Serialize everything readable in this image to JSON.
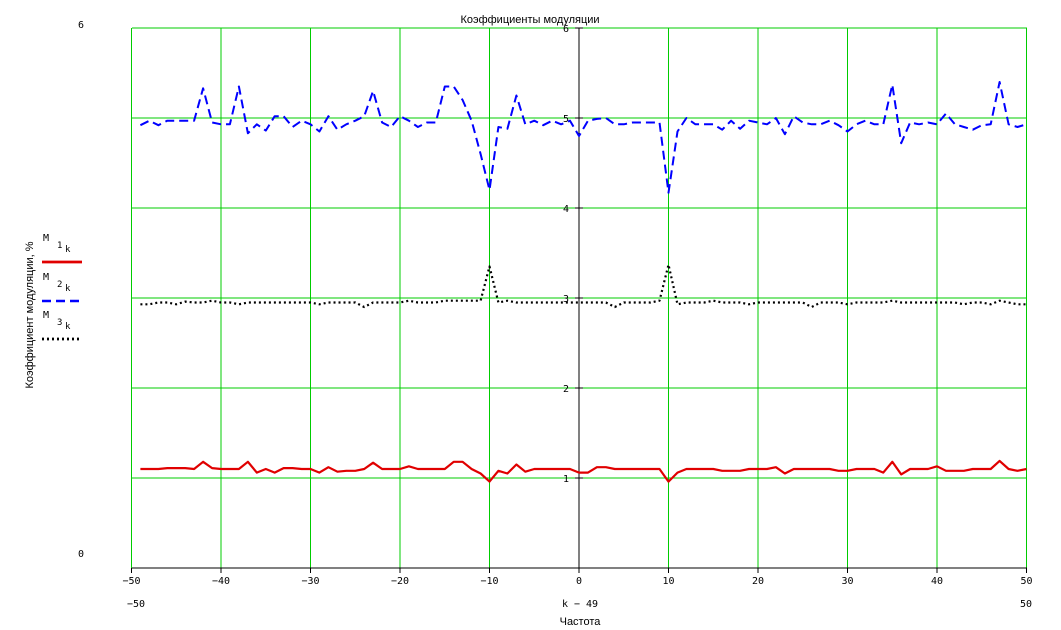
{
  "chart_data": {
    "type": "line",
    "title": "Коэффициенты модуляции",
    "xlabel_expr": "k − 49",
    "xlabel": "Частота",
    "ylabel": "Коэффициент модуляции, %",
    "xlim": [
      -50,
      50
    ],
    "ylim": [
      0,
      6
    ],
    "xlim_labels": [
      "−50",
      "50"
    ],
    "ylim_labels": [
      "0",
      "6"
    ],
    "grid": true,
    "grid_color": "#00cc00",
    "x_ticks": [
      "−50",
      "−40",
      "−30",
      "−20",
      "−10",
      "0",
      "10",
      "20",
      "30",
      "40",
      "50"
    ],
    "y_ticks": [
      "1",
      "2",
      "3",
      "4",
      "5",
      "6"
    ],
    "x": [
      -49,
      -48,
      -47,
      -46,
      -45,
      -44,
      -43,
      -42,
      -41,
      -40,
      -39,
      -38,
      -37,
      -36,
      -35,
      -34,
      -33,
      -32,
      -31,
      -30,
      -29,
      -28,
      -27,
      -26,
      -25,
      -24,
      -23,
      -22,
      -21,
      -20,
      -19,
      -18,
      -17,
      -16,
      -15,
      -14,
      -13,
      -12,
      -11,
      -10,
      -9,
      -8,
      -7,
      -6,
      -5,
      -4,
      -3,
      -2,
      -1,
      0,
      1,
      2,
      3,
      4,
      5,
      6,
      7,
      8,
      9,
      10,
      11,
      12,
      13,
      14,
      15,
      16,
      17,
      18,
      19,
      20,
      21,
      22,
      23,
      24,
      25,
      26,
      27,
      28,
      29,
      30,
      31,
      32,
      33,
      34,
      35,
      36,
      37,
      38,
      39,
      40,
      41,
      42,
      43,
      44,
      45,
      46,
      47,
      48,
      49,
      50
    ],
    "series": [
      {
        "name": "M",
        "subscript": "1",
        "index": "k",
        "color": "#e00000",
        "style": "solid",
        "values": [
          1.1,
          1.1,
          1.1,
          1.11,
          1.11,
          1.11,
          1.1,
          1.18,
          1.11,
          1.1,
          1.1,
          1.1,
          1.18,
          1.06,
          1.1,
          1.06,
          1.11,
          1.11,
          1.1,
          1.1,
          1.06,
          1.12,
          1.07,
          1.08,
          1.08,
          1.1,
          1.17,
          1.1,
          1.1,
          1.1,
          1.13,
          1.1,
          1.1,
          1.1,
          1.1,
          1.18,
          1.18,
          1.1,
          1.05,
          0.96,
          1.08,
          1.05,
          1.15,
          1.07,
          1.1,
          1.1,
          1.1,
          1.1,
          1.1,
          1.06,
          1.06,
          1.12,
          1.12,
          1.1,
          1.1,
          1.1,
          1.1,
          1.1,
          1.1,
          0.96,
          1.06,
          1.1,
          1.1,
          1.1,
          1.1,
          1.08,
          1.08,
          1.08,
          1.1,
          1.1,
          1.1,
          1.12,
          1.05,
          1.1,
          1.1,
          1.1,
          1.1,
          1.1,
          1.08,
          1.08,
          1.1,
          1.1,
          1.1,
          1.06,
          1.18,
          1.04,
          1.1,
          1.1,
          1.1,
          1.13,
          1.08,
          1.08,
          1.08,
          1.1,
          1.1,
          1.1,
          1.19,
          1.1,
          1.08,
          1.1
        ]
      },
      {
        "name": "M",
        "subscript": "2",
        "index": "k",
        "color": "#0000ff",
        "style": "dashed",
        "values": [
          4.92,
          4.97,
          4.92,
          4.97,
          4.97,
          4.97,
          4.97,
          5.33,
          4.95,
          4.93,
          4.93,
          5.35,
          4.83,
          4.93,
          4.86,
          5.02,
          5.02,
          4.9,
          4.97,
          4.93,
          4.85,
          5.02,
          4.87,
          4.93,
          4.97,
          5.02,
          5.3,
          4.95,
          4.9,
          5.02,
          4.97,
          4.9,
          4.95,
          4.95,
          5.35,
          5.35,
          5.2,
          4.97,
          4.6,
          4.2,
          4.9,
          4.88,
          5.25,
          4.93,
          4.97,
          4.92,
          4.97,
          4.93,
          4.97,
          4.8,
          4.97,
          4.99,
          5.0,
          4.93,
          4.93,
          4.95,
          4.95,
          4.95,
          4.95,
          4.17,
          4.85,
          5.0,
          4.93,
          4.93,
          4.93,
          4.87,
          4.97,
          4.88,
          4.97,
          4.95,
          4.93,
          5.0,
          4.82,
          5.02,
          4.95,
          4.93,
          4.93,
          4.97,
          4.92,
          4.85,
          4.93,
          4.97,
          4.93,
          4.93,
          5.37,
          4.72,
          4.95,
          4.93,
          4.95,
          4.93,
          5.05,
          4.93,
          4.9,
          4.87,
          4.92,
          4.93,
          5.4,
          4.93,
          4.9,
          4.93
        ]
      },
      {
        "name": "M",
        "subscript": "3",
        "index": "k",
        "color": "#000000",
        "style": "dotted",
        "values": [
          2.93,
          2.93,
          2.95,
          2.95,
          2.93,
          2.96,
          2.95,
          2.95,
          2.97,
          2.95,
          2.95,
          2.93,
          2.95,
          2.95,
          2.95,
          2.95,
          2.95,
          2.95,
          2.95,
          2.95,
          2.93,
          2.95,
          2.95,
          2.95,
          2.95,
          2.9,
          2.95,
          2.95,
          2.95,
          2.95,
          2.97,
          2.95,
          2.95,
          2.95,
          2.97,
          2.97,
          2.97,
          2.97,
          2.97,
          3.35,
          2.95,
          2.97,
          2.95,
          2.95,
          2.95,
          2.95,
          2.95,
          2.95,
          2.95,
          2.95,
          2.95,
          2.95,
          2.95,
          2.9,
          2.95,
          2.95,
          2.95,
          2.95,
          2.97,
          3.37,
          2.93,
          2.95,
          2.95,
          2.95,
          2.97,
          2.95,
          2.95,
          2.95,
          2.93,
          2.95,
          2.95,
          2.95,
          2.95,
          2.95,
          2.95,
          2.9,
          2.95,
          2.95,
          2.95,
          2.93,
          2.95,
          2.95,
          2.95,
          2.95,
          2.97,
          2.95,
          2.95,
          2.95,
          2.95,
          2.95,
          2.95,
          2.95,
          2.93,
          2.95,
          2.95,
          2.93,
          2.97,
          2.95,
          2.93,
          2.93
        ]
      }
    ]
  }
}
